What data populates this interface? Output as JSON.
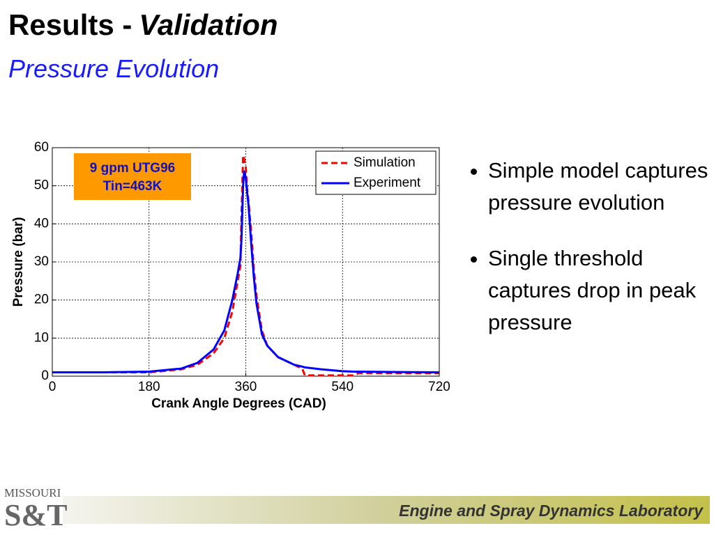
{
  "slide": {
    "title": "Results -",
    "title_emphasis": "Validation",
    "subtitle": "Pressure Evolution",
    "bullets": [
      "Simple model captures pressure evolution",
      "Single threshold captures drop in peak pressure"
    ],
    "footer": "Engine and Spray Dynamics Laboratory",
    "logo": {
      "top": "MISSOURI",
      "bottom": "S&T"
    }
  },
  "chart_data": {
    "type": "line",
    "xlabel": "Crank Angle Degrees (CAD)",
    "ylabel": "Pressure (bar)",
    "annotation": [
      "9 gpm UTG96",
      "Tin=463K"
    ],
    "x": [
      0,
      90,
      180,
      240,
      270,
      300,
      320,
      335,
      345,
      350,
      352,
      355,
      357,
      360,
      362,
      365,
      370,
      375,
      380,
      390,
      400,
      420,
      450,
      465,
      470,
      500,
      540,
      560,
      570,
      630,
      720
    ],
    "series": [
      {
        "name": "Simulation",
        "color": "#ff0000",
        "linestyle": "dashed",
        "values": [
          1,
          1,
          1,
          1.8,
          3,
          6,
          10,
          17,
          25,
          29,
          42,
          58,
          57,
          55,
          50,
          46,
          38,
          28,
          21,
          12,
          8,
          5,
          3,
          2,
          0.2,
          0.2,
          0.2,
          0.2,
          0.8,
          0.8,
          0.8
        ]
      },
      {
        "name": "Experiment",
        "color": "#0000ff",
        "linestyle": "solid",
        "values": [
          1,
          1,
          1.2,
          2,
          3.5,
          7,
          12,
          20,
          27,
          31,
          36,
          50,
          54,
          52,
          49,
          45,
          35,
          26,
          19,
          11,
          8,
          5,
          3,
          2.5,
          2.3,
          1.8,
          1.3,
          1.2,
          1.2,
          1.1,
          1
        ]
      }
    ],
    "xlim": [
      0,
      720
    ],
    "ylim": [
      0,
      60
    ],
    "xticks": [
      0,
      180,
      360,
      540,
      720
    ],
    "yticks": [
      0,
      10,
      20,
      30,
      40,
      50,
      60
    ],
    "grid": true,
    "legend": "upper right"
  }
}
